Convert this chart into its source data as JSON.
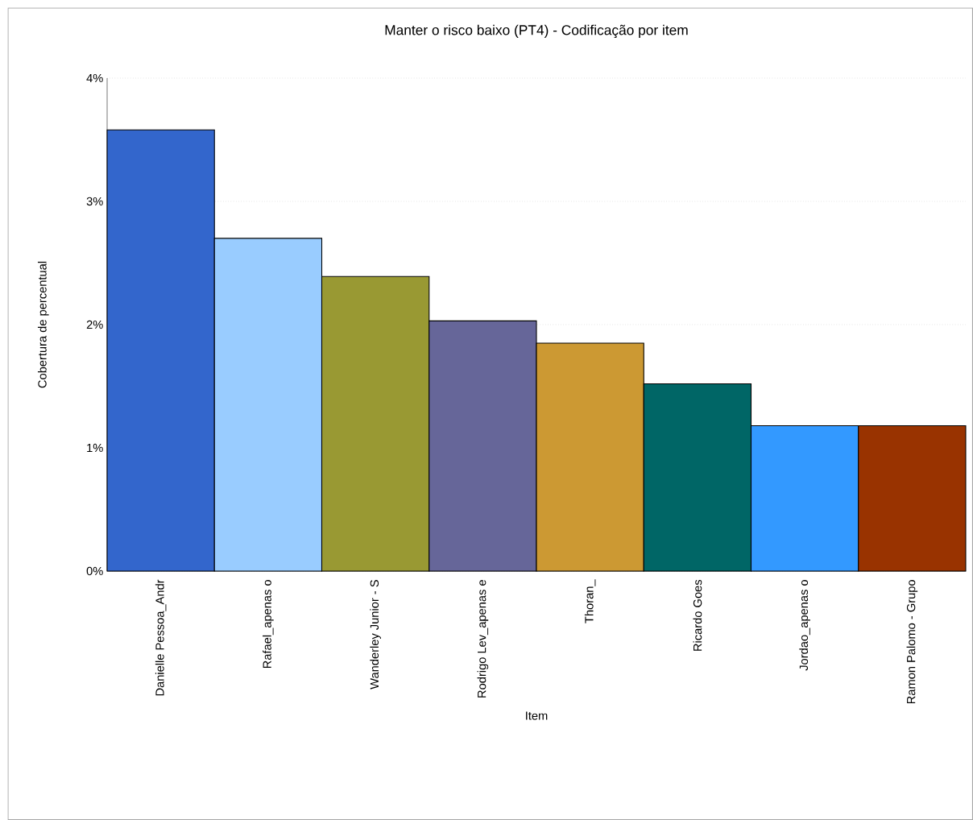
{
  "chart_data": {
    "type": "bar",
    "title": "Manter o risco baixo (PT4) - Codificação por item",
    "xlabel": "Item",
    "ylabel": "Cobertura de percentual",
    "categories": [
      "Danielle Pessoa_Andr",
      "Rafael_apenas o",
      "Wanderley Junior - S",
      "Rodrigo Lev_apenas e",
      "Thoran_",
      "Ricardo Goes",
      "Jordao_apenas o",
      "Ramon Palomo - Grupo"
    ],
    "values": [
      3.58,
      2.7,
      2.39,
      2.03,
      1.85,
      1.52,
      1.18,
      1.18
    ],
    "colors": [
      "#3366cc",
      "#99ccff",
      "#999933",
      "#666699",
      "#cc9933",
      "#006666",
      "#3399ff",
      "#993300"
    ],
    "ylim": [
      0,
      4
    ],
    "yticks": [
      {
        "value": 0,
        "label": "0%"
      },
      {
        "value": 1,
        "label": "1%"
      },
      {
        "value": 2,
        "label": "2%"
      },
      {
        "value": 3,
        "label": "3%"
      },
      {
        "value": 4,
        "label": "4%"
      }
    ],
    "grid": "y"
  }
}
